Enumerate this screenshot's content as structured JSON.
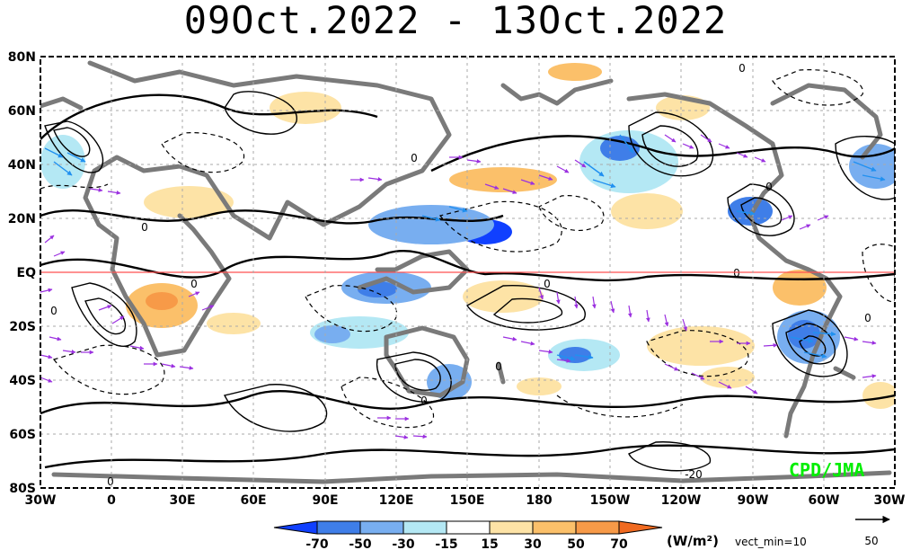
{
  "title": "09Oct.2022 - 13Oct.2022",
  "axes": {
    "lat_labels": [
      "80N",
      "60N",
      "40N",
      "20N",
      "EQ",
      "20S",
      "40S",
      "60S",
      "80S"
    ],
    "lon_labels": [
      "30W",
      "0",
      "30E",
      "60E",
      "90E",
      "120E",
      "150E",
      "180",
      "150W",
      "120W",
      "90W",
      "60W",
      "30W"
    ]
  },
  "contour_labels": [
    "0",
    "0",
    "0",
    "0",
    "0",
    "0",
    "0",
    "0",
    "0",
    "0",
    "0",
    "0",
    "-20"
  ],
  "colorbar": {
    "levels": [
      "-70",
      "-50",
      "-30",
      "-15",
      "15",
      "30",
      "50",
      "70"
    ],
    "colors": [
      "#1040ff",
      "#3f7ee8",
      "#78aef0",
      "#b4e8f4",
      "#ffffff",
      "#fde3a6",
      "#fbc06a",
      "#f79a48",
      "#f06a20"
    ],
    "units": "(W/m²)",
    "vect_note": "vect_min=10"
  },
  "reference_vector": {
    "value": "50"
  },
  "credit": "CPD/JMA",
  "colors": {
    "coast": "#7a7a7a",
    "equator": "#ff5050",
    "vector": "#9b30e0",
    "vector_strong": "#2090f0",
    "credit": "#00ee00"
  }
}
